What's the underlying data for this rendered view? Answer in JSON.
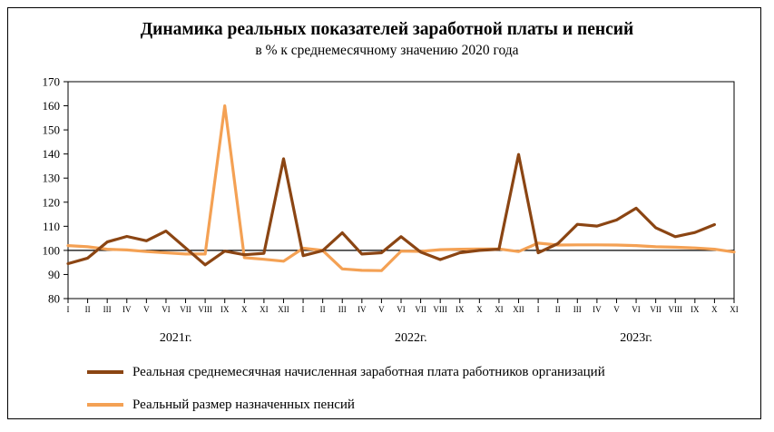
{
  "colors": {
    "wages": "#8B4513",
    "pensions": "#F4A154",
    "baseline": "#000000"
  },
  "chart_data": {
    "type": "line",
    "title": "Динамика реальных показателей заработной платы и пенсий",
    "subtitle": "в % к среднемесячному значению 2020 года",
    "ylim": [
      80,
      170
    ],
    "yticks": [
      80,
      90,
      100,
      110,
      120,
      130,
      140,
      150,
      160,
      170
    ],
    "grid": false,
    "baseline_value": 100,
    "legend_position": "bottom",
    "categories": [
      "I",
      "II",
      "III",
      "IV",
      "V",
      "VI",
      "VII",
      "VIII",
      "IX",
      "X",
      "XI",
      "XII",
      "I",
      "II",
      "III",
      "IV",
      "V",
      "VI",
      "VII",
      "VIII",
      "IX",
      "X",
      "XI",
      "XII",
      "I",
      "II",
      "III",
      "IV",
      "V",
      "VI",
      "VII",
      "VIII",
      "IX",
      "X",
      "XI"
    ],
    "years": [
      {
        "label": "2021г.",
        "start": 0,
        "end": 11
      },
      {
        "label": "2022г.",
        "start": 12,
        "end": 23
      },
      {
        "label": "2023г.",
        "start": 24,
        "end": 34
      }
    ],
    "series": [
      {
        "name": "Реальная среднемесячная начисленная заработная плата работников организаций",
        "color_key": "wages",
        "values": [
          94.5,
          96.8,
          103.5,
          105.8,
          104.0,
          108.0,
          101.0,
          94.0,
          99.7,
          98.2,
          98.8,
          138.0,
          97.8,
          99.9,
          107.3,
          98.5,
          99.0,
          105.7,
          99.3,
          96.2,
          99.0,
          100.0,
          100.5,
          139.8,
          99.0,
          102.8,
          110.8,
          110.1,
          112.6,
          117.5,
          109.4,
          105.7,
          107.4,
          110.7,
          null
        ]
      },
      {
        "name": "Реальный размер назначенных пенсий",
        "color_key": "pensions",
        "values": [
          102.0,
          101.5,
          100.5,
          100.2,
          99.5,
          99.0,
          98.5,
          98.5,
          160.0,
          97.0,
          96.3,
          95.5,
          100.9,
          100.0,
          92.3,
          91.7,
          91.6,
          99.7,
          99.6,
          100.3,
          100.5,
          100.6,
          100.6,
          99.5,
          103.0,
          102.2,
          102.3,
          102.3,
          102.2,
          102.0,
          101.5,
          101.3,
          101.0,
          100.5,
          99.3
        ]
      }
    ]
  }
}
